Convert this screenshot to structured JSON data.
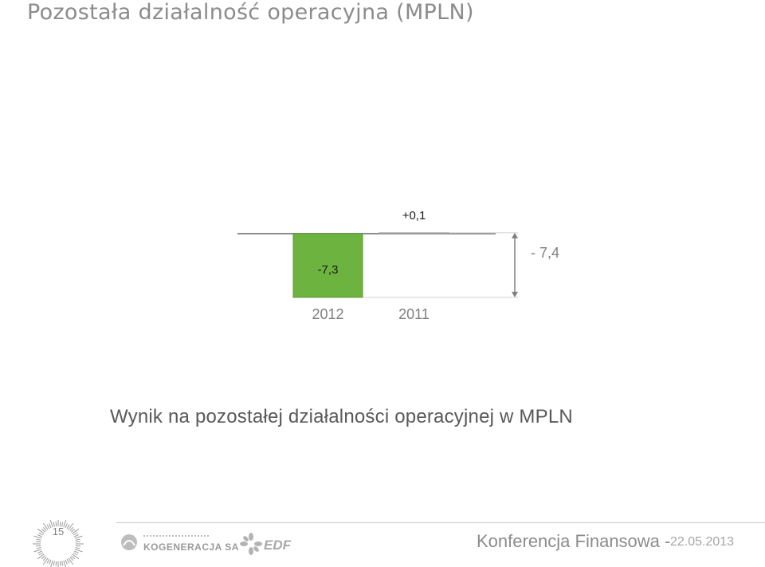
{
  "slide": {
    "title": "Pozostała działalność operacyjna (MPLN)",
    "caption": "Wynik na pozostałej działalności operacyjnej  w MPLN",
    "page_number": "15"
  },
  "footer": {
    "conference": "Konferencja Finansowa -",
    "date": "22.05.2013",
    "logo_kogeneracja": "KOGENERACJA SA",
    "logo_edf": "EDF"
  },
  "chart_data": {
    "type": "bar",
    "categories": [
      "2012",
      "2011"
    ],
    "values": [
      -7.3,
      0.1
    ],
    "value_labels": [
      "-7,3",
      "+0,1"
    ],
    "difference_label": "- 7,4",
    "difference": -7.4,
    "colors": {
      "2012": "#6cb33f",
      "2011": "#c8c8c8"
    },
    "ylim": [
      -7.3,
      0.1
    ],
    "grid": false,
    "legend": "none"
  }
}
